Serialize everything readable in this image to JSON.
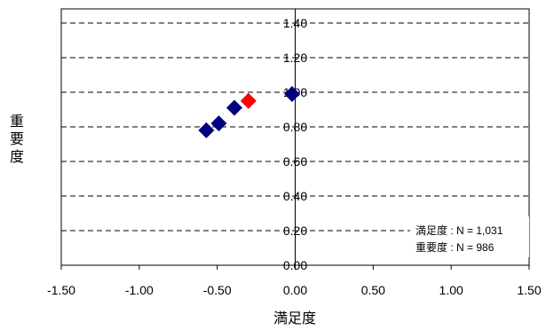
{
  "chart_data": {
    "type": "scatter",
    "xlabel": "満足度",
    "ylabel": "重要度",
    "xlim": [
      -1.5,
      1.5
    ],
    "ylim": [
      0,
      1.5
    ],
    "x_ticks": [
      "-1.50",
      "-1.00",
      "-0.50",
      "0.00",
      "0.50",
      "1.00",
      "1.50"
    ],
    "y_ticks": [
      "0.00",
      "0.20",
      "0.40",
      "0.60",
      "0.80",
      "1.00",
      "1.20",
      "1.40"
    ],
    "grid": "horizontal-dashed",
    "series": [
      {
        "color": "#000080",
        "points": [
          {
            "x": -0.57,
            "y": 0.78
          },
          {
            "x": -0.49,
            "y": 0.82
          },
          {
            "x": -0.39,
            "y": 0.91
          },
          {
            "x": -0.02,
            "y": 0.99
          }
        ]
      },
      {
        "color": "#ff0000",
        "points": [
          {
            "x": -0.3,
            "y": 0.95
          }
        ]
      }
    ],
    "annotations": [
      "満足度 : N = 1,031",
      "重要度 : N = 986"
    ]
  }
}
